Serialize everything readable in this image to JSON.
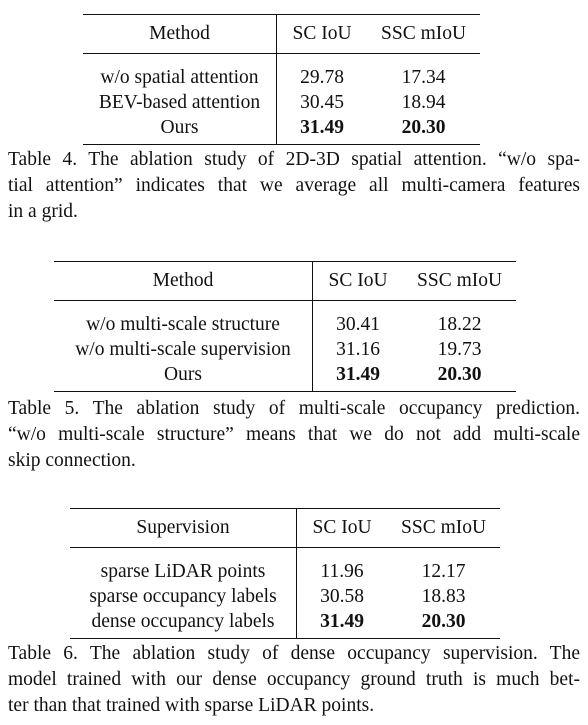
{
  "tables": [
    {
      "id": "table4",
      "headers": [
        "Method",
        "SC IoU",
        "SSC mIoU"
      ],
      "rows": [
        {
          "label": "w/o spatial attention",
          "sc_iou": "29.78",
          "ssc_miou": "17.34"
        },
        {
          "label": "BEV-based attention",
          "sc_iou": "30.45",
          "ssc_miou": "18.94"
        },
        {
          "label": "Ours",
          "sc_iou": "31.49",
          "ssc_miou": "20.30"
        }
      ],
      "caption_lines": [
        "Table 4. The ablation study of 2D-3D spatial attention. “w/o spa-",
        "tial attention” indicates that we average all multi-camera features",
        "in a grid."
      ]
    },
    {
      "id": "table5",
      "headers": [
        "Method",
        "SC IoU",
        "SSC mIoU"
      ],
      "rows": [
        {
          "label": "w/o multi-scale structure",
          "sc_iou": "30.41",
          "ssc_miou": "18.22"
        },
        {
          "label": "w/o multi-scale supervision",
          "sc_iou": "31.16",
          "ssc_miou": "19.73"
        },
        {
          "label": "Ours",
          "sc_iou": "31.49",
          "ssc_miou": "20.30"
        }
      ],
      "caption_lines": [
        "Table 5. The ablation study of multi-scale occupancy prediction.",
        "“w/o multi-scale structure” means that we do not add multi-scale",
        "skip connection."
      ]
    },
    {
      "id": "table6",
      "headers": [
        "Supervision",
        "SC IoU",
        "SSC mIoU"
      ],
      "rows": [
        {
          "label": "sparse LiDAR points",
          "sc_iou": "11.96",
          "ssc_miou": "12.17"
        },
        {
          "label": "sparse occupancy labels",
          "sc_iou": "30.58",
          "ssc_miou": "18.83"
        },
        {
          "label": "dense occupancy labels",
          "sc_iou": "31.49",
          "ssc_miou": "20.30"
        }
      ],
      "caption_lines": [
        "Table 6. The ablation study of dense occupancy supervision. The",
        "model trained with our dense occupancy ground truth is much bet-",
        "ter than that trained with sparse LiDAR points."
      ]
    }
  ]
}
